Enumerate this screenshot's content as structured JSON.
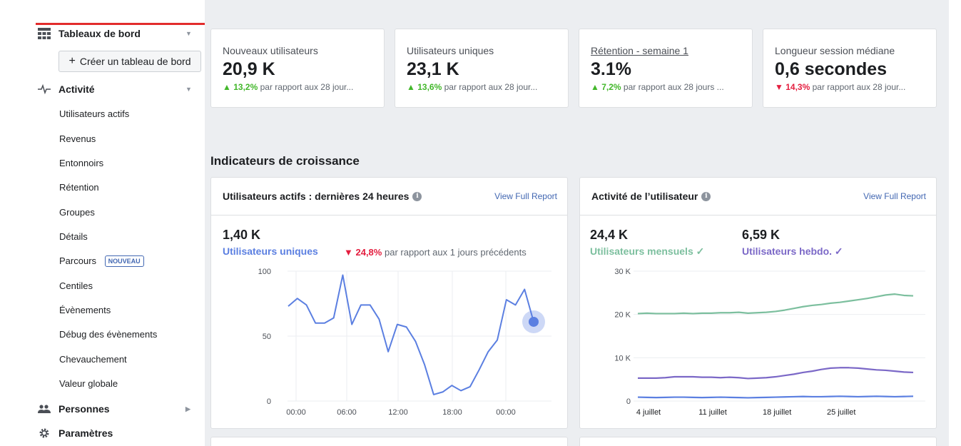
{
  "sidebar": {
    "dashboards": "Tableaux de bord",
    "create_dashboard": "Créer un tableau de bord",
    "activity": "Activité",
    "items": [
      "Utilisateurs actifs",
      "Revenus",
      "Entonnoirs",
      "Rétention",
      "Groupes",
      "Détails",
      "Parcours",
      "Centiles",
      "Évènements",
      "Débug des évènements",
      "Chevauchement",
      "Valeur globale"
    ],
    "new_badge": "NOUVEAU",
    "people": "Personnes",
    "settings": "Paramètres"
  },
  "stats": [
    {
      "label": "Nouveaux utilisateurs",
      "value": "20,9 K",
      "delta": "13,2%",
      "direction": "up",
      "comparison": "par rapport aux 28 jour..."
    },
    {
      "label": "Utilisateurs uniques",
      "value": "23,1 K",
      "delta": "13,6%",
      "direction": "up",
      "comparison": "par rapport aux 28 jour..."
    },
    {
      "label": "Rétention - semaine 1",
      "value": "3.1%",
      "delta": "7,2%",
      "direction": "up",
      "comparison": "par rapport aux 28 jours ..."
    },
    {
      "label": "Longueur session médiane",
      "value": "0,6 secondes",
      "delta": "14,3%",
      "direction": "down",
      "comparison": "par rapport aux 28 jour..."
    }
  ],
  "section_title": "Indicateurs de croissance",
  "panels": {
    "active": {
      "title": "Utilisateurs actifs : dernières 24 heures",
      "link": "View Full Report",
      "metric": "1,40 K",
      "metric_label": "Utilisateurs uniques",
      "delta": "24,8%",
      "delta_text": "par rapport aux 1 jours précédents"
    },
    "activity": {
      "title": "Activité de l’utilisateur",
      "link": "View Full Report",
      "monthly_value": "24,4 K",
      "monthly_label": "Utilisateurs mensuels ✓",
      "weekly_value": "6,59 K",
      "weekly_label": "Utilisateurs hebdo. ✓"
    }
  },
  "colors": {
    "accent": "#4267b2",
    "line_blue": "#5b7fe1",
    "monthly": "#7cbf9e",
    "weekly": "#7b68c7",
    "daily": "#5b7fe1",
    "up": "#42b72a",
    "down": "#e41e3f"
  },
  "chart_data": [
    {
      "type": "line",
      "title": "Utilisateurs actifs : dernières 24 heures",
      "x_ticks": [
        "00:00",
        "06:00",
        "12:00",
        "18:00",
        "00:00"
      ],
      "y_ticks": [
        "0",
        "50",
        "100"
      ],
      "ylim": [
        0,
        100
      ],
      "series": [
        {
          "name": "Utilisateurs uniques",
          "values": [
            73,
            79,
            74,
            60,
            60,
            64,
            97,
            59,
            74,
            74,
            63,
            38,
            59,
            57,
            46,
            28,
            5,
            7,
            12,
            8,
            11,
            24,
            38,
            47,
            78,
            74,
            86,
            61
          ]
        }
      ]
    },
    {
      "type": "line",
      "title": "Activité de l’utilisateur",
      "x_ticks": [
        "4 juillet",
        "11 juillet",
        "18 juillet",
        "25 juillet"
      ],
      "y_ticks": [
        "0",
        "10 K",
        "20 K",
        "30 K"
      ],
      "ylim": [
        0,
        30000
      ],
      "series": [
        {
          "name": "Utilisateurs mensuels",
          "values": [
            20200,
            20300,
            20200,
            20200,
            20200,
            20300,
            20200,
            20300,
            20300,
            20400,
            20400,
            20500,
            20300,
            20400,
            20500,
            20700,
            21000,
            21400,
            21800,
            22100,
            22300,
            22600,
            22800,
            23100,
            23400,
            23700,
            24100,
            24500,
            24700,
            24400,
            24300
          ]
        },
        {
          "name": "Utilisateurs hebdo.",
          "values": [
            5300,
            5300,
            5300,
            5400,
            5600,
            5600,
            5600,
            5500,
            5500,
            5400,
            5500,
            5400,
            5200,
            5300,
            5400,
            5600,
            5900,
            6200,
            6600,
            6900,
            7300,
            7600,
            7700,
            7700,
            7600,
            7400,
            7200,
            7100,
            6900,
            6700,
            6600
          ]
        },
        {
          "values": [
            900,
            850,
            800,
            850,
            900,
            900,
            850,
            800,
            850,
            900,
            850,
            800,
            750,
            800,
            850,
            900,
            950,
            1000,
            1050,
            1000,
            1000,
            1050,
            1100,
            1050,
            1000,
            1050,
            1100,
            1050,
            1000,
            1050,
            1100
          ]
        }
      ]
    }
  ]
}
